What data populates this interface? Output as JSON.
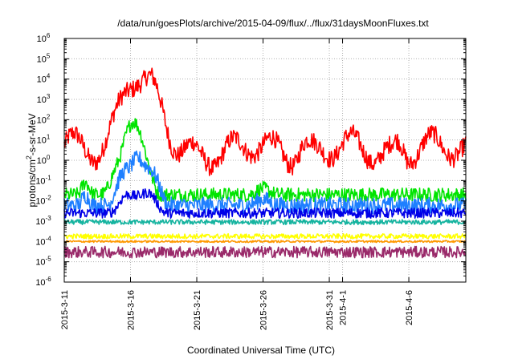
{
  "chart_data": {
    "type": "line",
    "title": "/data/run/goesPlots/archive/2015-04-09/flux/../flux/31daysMoonFluxes.txt",
    "xlabel": "Coordinated Universal Time (UTC)",
    "ylabel": {
      "pre": "protons/cm",
      "sup": "2",
      "post": "-s-sr-MeV"
    },
    "yscale": "log",
    "ylim": [
      1e-06,
      1000000.0
    ],
    "x_range_days": [
      0,
      30.3
    ],
    "grid": true,
    "y_ticks": [
      {
        "exp": "-6",
        "value": 1e-06
      },
      {
        "exp": "-5",
        "value": 1e-05
      },
      {
        "exp": "-4",
        "value": 0.0001
      },
      {
        "exp": "-3",
        "value": 0.001
      },
      {
        "exp": "-2",
        "value": 0.01
      },
      {
        "exp": "-1",
        "value": 0.1
      },
      {
        "exp": "0",
        "value": 1
      },
      {
        "exp": "1",
        "value": 10
      },
      {
        "exp": "2",
        "value": 100
      },
      {
        "exp": "3",
        "value": 1000
      },
      {
        "exp": "4",
        "value": 10000
      },
      {
        "exp": "5",
        "value": 100000
      },
      {
        "exp": "6",
        "value": 1000000
      }
    ],
    "y_tick_base": "10",
    "x_ticks": [
      {
        "label": "2015-3-11",
        "day": 0.0
      },
      {
        "label": "2015-3-16",
        "day": 5.0
      },
      {
        "label": "2015-3-21",
        "day": 10.0
      },
      {
        "label": "2015-3-26",
        "day": 15.0
      },
      {
        "label": "2015-3-31",
        "day": 20.0
      },
      {
        "label": "2015-4-1",
        "day": 21.0
      },
      {
        "label": "2015-4-6",
        "day": 26.0
      }
    ],
    "series": [
      {
        "name": "red",
        "color": "#ff0000",
        "base": 3,
        "noise": 0.45,
        "events": [
          [
            4.6,
            1.5,
            10
          ],
          [
            5.3,
            2.5,
            40
          ],
          [
            6.2,
            2.0,
            60
          ],
          [
            18.0,
            1.0,
            3
          ],
          [
            25.3,
            0.8,
            3
          ]
        ]
      },
      {
        "name": "green",
        "color": "#00e400",
        "base": 0.02,
        "noise": 0.35,
        "events": [
          [
            1.6,
            0.6,
            4
          ],
          [
            4.7,
            1.4,
            80
          ],
          [
            5.6,
            1.2,
            120
          ],
          [
            15.0,
            1.2,
            2
          ]
        ]
      },
      {
        "name": "light-blue",
        "color": "#1e7fff",
        "base": 0.006,
        "noise": 0.4,
        "events": [
          [
            1.6,
            0.6,
            3
          ],
          [
            4.8,
            1.2,
            60
          ],
          [
            6.3,
            1.2,
            70
          ],
          [
            15.0,
            1.2,
            2
          ]
        ]
      },
      {
        "name": "blue",
        "color": "#0000e8",
        "base": 0.0025,
        "noise": 0.25,
        "events": [
          [
            4.8,
            1.2,
            8
          ],
          [
            6.3,
            1.2,
            10
          ]
        ]
      },
      {
        "name": "teal",
        "color": "#16b4a0",
        "base": 0.0009,
        "noise": 0.12,
        "events": []
      },
      {
        "name": "yellow",
        "color": "#ffff00",
        "base": 0.00018,
        "noise": 0.12,
        "events": []
      },
      {
        "name": "orange",
        "color": "#ff9900",
        "base": 0.0001,
        "noise": 0.05,
        "events": []
      },
      {
        "name": "purple",
        "color": "#9a2a6a",
        "base": 3e-05,
        "noise": 0.28,
        "events": []
      }
    ]
  }
}
